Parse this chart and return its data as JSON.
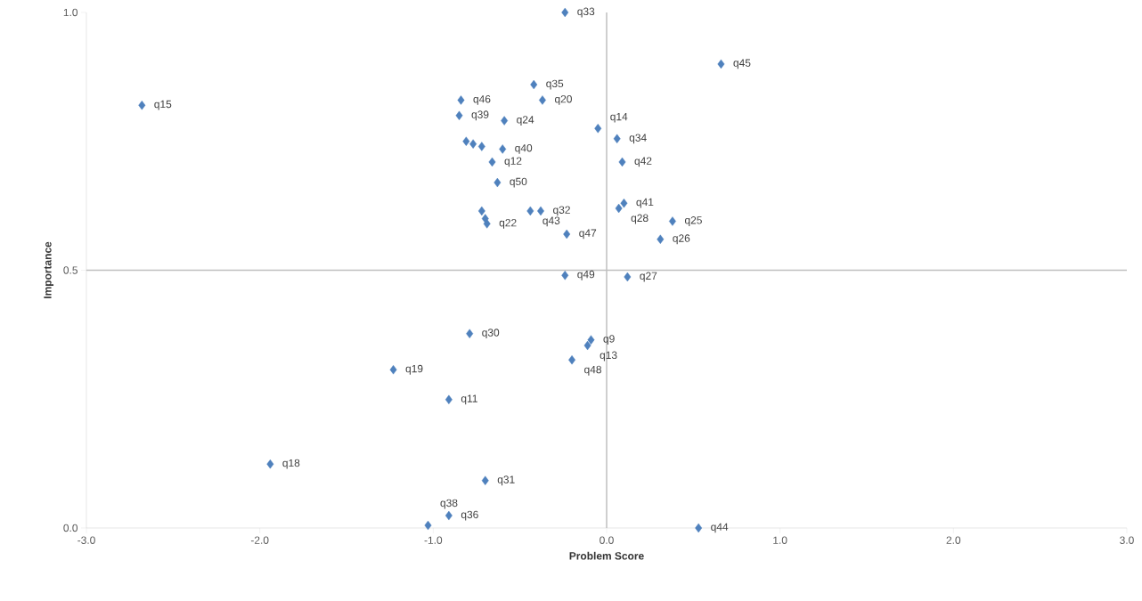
{
  "chart_data": {
    "type": "scatter",
    "xlabel": "Problem Score",
    "ylabel": "Importance",
    "xlim": [
      -3,
      3
    ],
    "ylim": [
      0,
      1
    ],
    "xticks": [
      {
        "value": -3,
        "label": "-3.0"
      },
      {
        "value": -2,
        "label": "-2.0"
      },
      {
        "value": -1,
        "label": "-1.0"
      },
      {
        "value": 0,
        "label": "0.0"
      },
      {
        "value": 1,
        "label": "1.0"
      },
      {
        "value": 2,
        "label": "2.0"
      },
      {
        "value": 3,
        "label": "3.0"
      }
    ],
    "yticks": [
      {
        "value": 0,
        "label": "0.0"
      },
      {
        "value": 0.5,
        "label": "0.5"
      },
      {
        "value": 1,
        "label": "1.0"
      }
    ],
    "marker": "diamond",
    "grid": false,
    "ref_lines": [
      {
        "axis": "x",
        "value": 0,
        "color": "#bfbfbf"
      },
      {
        "axis": "y",
        "value": 0.5,
        "color": "#bfbfbf"
      }
    ],
    "series": [
      {
        "color": "#4f81bd",
        "x": [
          -0.24,
          0.66,
          -2.68,
          -0.84,
          -0.42,
          -0.37,
          -0.85,
          -0.59,
          -0.05,
          0.06,
          -0.81,
          -0.77,
          -0.72,
          -0.6,
          -0.66,
          0.09,
          -0.63,
          0.1,
          0.07,
          -0.72,
          -0.7,
          -0.69,
          -0.44,
          -0.38,
          0.38,
          -0.23,
          0.31,
          -0.24,
          0.12,
          -0.79,
          -0.09,
          -0.11,
          -0.2,
          -1.23,
          -0.91,
          -1.94,
          -0.7,
          -0.91,
          -1.03,
          0.53
        ],
        "values": [
          1.0,
          0.9,
          0.82,
          0.83,
          0.86,
          0.83,
          0.8,
          0.79,
          0.775,
          0.755,
          0.75,
          0.745,
          0.74,
          0.735,
          0.71,
          0.71,
          0.67,
          0.63,
          0.62,
          0.615,
          0.6,
          0.59,
          0.615,
          0.615,
          0.595,
          0.57,
          0.56,
          0.49,
          0.487,
          0.377,
          0.365,
          0.354,
          0.326,
          0.307,
          0.249,
          0.124,
          0.092,
          0.024,
          0.005,
          0.0
        ],
        "value_labels": [
          "q33",
          "q45",
          "q15",
          "q46",
          "q35",
          "q20",
          "q39",
          "q24",
          "q14",
          "q34",
          null,
          null,
          null,
          "q40",
          "q12",
          "q42",
          "q50",
          "q41",
          "q28",
          null,
          null,
          "q22",
          "q43",
          "q32",
          "q25",
          "q47",
          "q26",
          "q49",
          "q27",
          "q30",
          "q9",
          "q13",
          "q48",
          "q19",
          "q11",
          "q18",
          "q31",
          "q36",
          "q38",
          "q44"
        ]
      }
    ]
  }
}
